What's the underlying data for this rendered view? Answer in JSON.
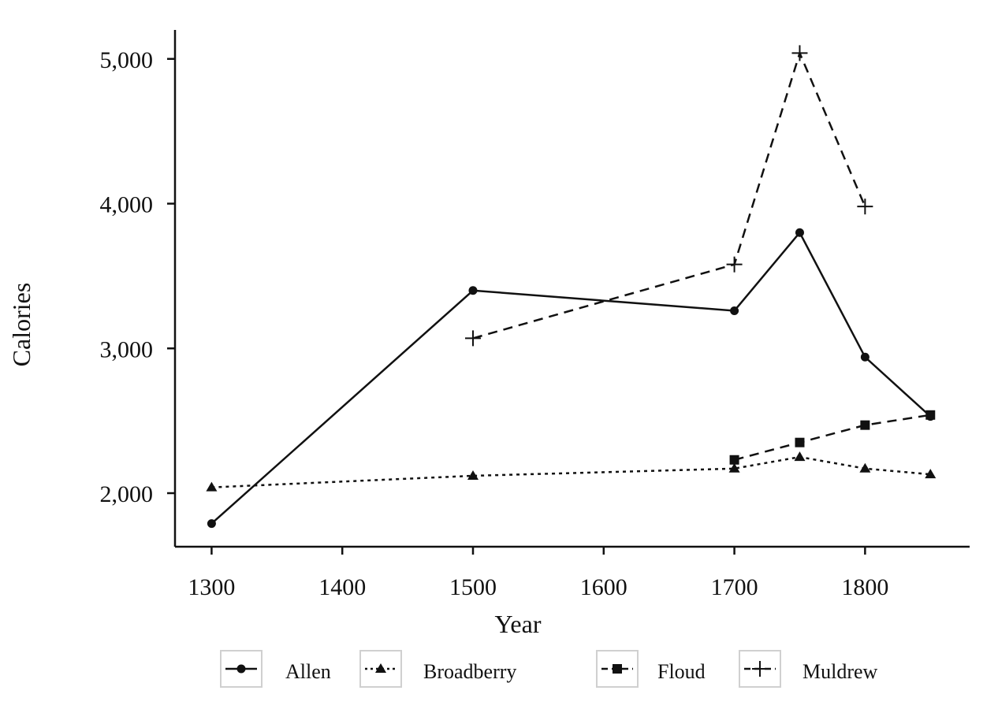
{
  "chart_data": {
    "type": "line",
    "title": "",
    "xlabel": "Year",
    "ylabel": "Calories",
    "xlim": [
      1272,
      1880
    ],
    "ylim": [
      1630,
      5200
    ],
    "x_ticks": [
      1300,
      1400,
      1500,
      1600,
      1700,
      1800
    ],
    "x_tick_labels": [
      "1300",
      "1400",
      "1500",
      "1600",
      "1700",
      "1800"
    ],
    "y_ticks": [
      2000,
      3000,
      4000,
      5000
    ],
    "y_tick_labels": [
      "2,000",
      "3,000",
      "4,000",
      "5,000"
    ],
    "grid": false,
    "legend_position": "bottom",
    "series": [
      {
        "name": "Allen",
        "marker": "circle",
        "line_style": "solid",
        "points": [
          [
            1300,
            1790
          ],
          [
            1500,
            3400
          ],
          [
            1700,
            3260
          ],
          [
            1750,
            3800
          ],
          [
            1800,
            2940
          ],
          [
            1850,
            2530
          ]
        ]
      },
      {
        "name": "Broadberry",
        "marker": "triangle",
        "line_style": "dotted",
        "points": [
          [
            1300,
            2040
          ],
          [
            1500,
            2120
          ],
          [
            1700,
            2170
          ],
          [
            1750,
            2250
          ],
          [
            1800,
            2170
          ],
          [
            1850,
            2130
          ]
        ]
      },
      {
        "name": "Floud",
        "marker": "square",
        "line_style": "dashed",
        "points": [
          [
            1700,
            2230
          ],
          [
            1750,
            2350
          ],
          [
            1800,
            2470
          ],
          [
            1850,
            2540
          ]
        ]
      },
      {
        "name": "Muldrew",
        "marker": "plus",
        "line_style": "dashed",
        "points": [
          [
            1500,
            3070
          ],
          [
            1700,
            3580
          ],
          [
            1750,
            5040
          ],
          [
            1800,
            3980
          ]
        ]
      }
    ]
  }
}
